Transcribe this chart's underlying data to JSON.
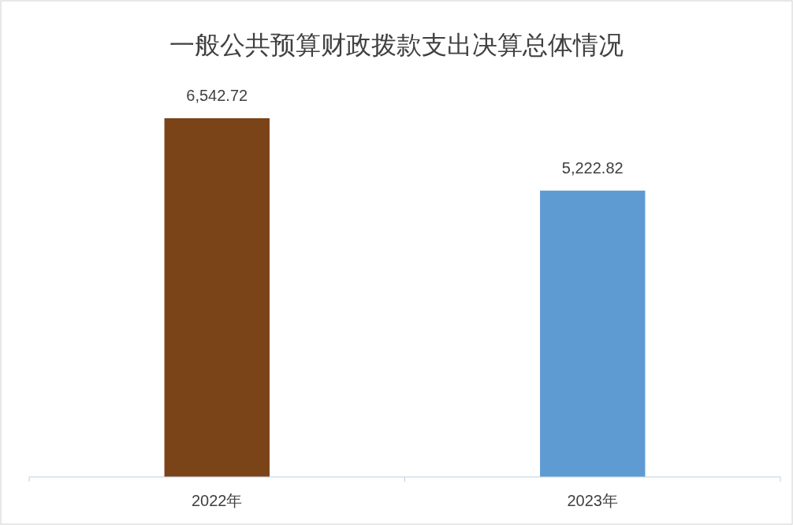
{
  "chart_data": {
    "type": "bar",
    "title": "一般公共预算财政拨款支出决算总体情况",
    "categories": [
      "2022年",
      "2023年"
    ],
    "values": [
      6542.72,
      5222.82
    ],
    "value_labels": [
      "6,542.72",
      "5,222.82"
    ],
    "colors": [
      "#7b4318",
      "#5f9bd3"
    ]
  }
}
